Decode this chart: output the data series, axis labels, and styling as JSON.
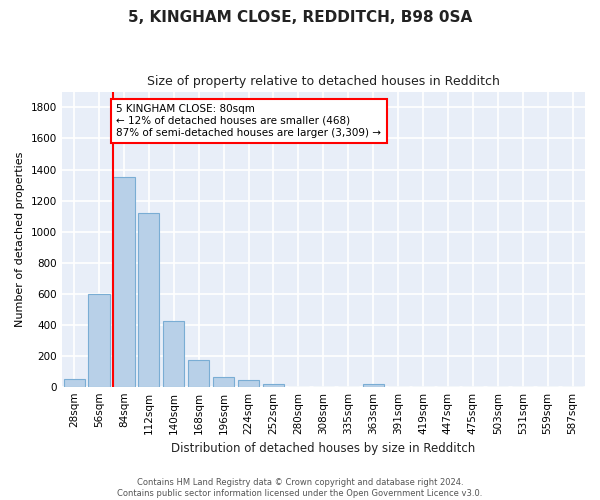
{
  "title": "5, KINGHAM CLOSE, REDDITCH, B98 0SA",
  "subtitle": "Size of property relative to detached houses in Redditch",
  "xlabel": "Distribution of detached houses by size in Redditch",
  "ylabel": "Number of detached properties",
  "bar_color": "#b8d0e8",
  "bar_edge_color": "#7aadd4",
  "background_color": "#e8eef8",
  "figure_color": "#ffffff",
  "grid_color": "#ffffff",
  "categories": [
    "28sqm",
    "56sqm",
    "84sqm",
    "112sqm",
    "140sqm",
    "168sqm",
    "196sqm",
    "224sqm",
    "252sqm",
    "280sqm",
    "308sqm",
    "335sqm",
    "363sqm",
    "391sqm",
    "419sqm",
    "447sqm",
    "475sqm",
    "503sqm",
    "531sqm",
    "559sqm",
    "587sqm"
  ],
  "values": [
    50,
    600,
    1350,
    1120,
    425,
    170,
    60,
    40,
    18,
    0,
    0,
    0,
    20,
    0,
    0,
    0,
    0,
    0,
    0,
    0,
    0
  ],
  "ylim": [
    0,
    1900
  ],
  "yticks": [
    0,
    200,
    400,
    600,
    800,
    1000,
    1200,
    1400,
    1600,
    1800
  ],
  "marker_label_line1": "5 KINGHAM CLOSE: 80sqm",
  "marker_label_line2": "← 12% of detached houses are smaller (468)",
  "marker_label_line3": "87% of semi-detached houses are larger (3,309) →",
  "footer_line1": "Contains HM Land Registry data © Crown copyright and database right 2024.",
  "footer_line2": "Contains public sector information licensed under the Open Government Licence v3.0."
}
